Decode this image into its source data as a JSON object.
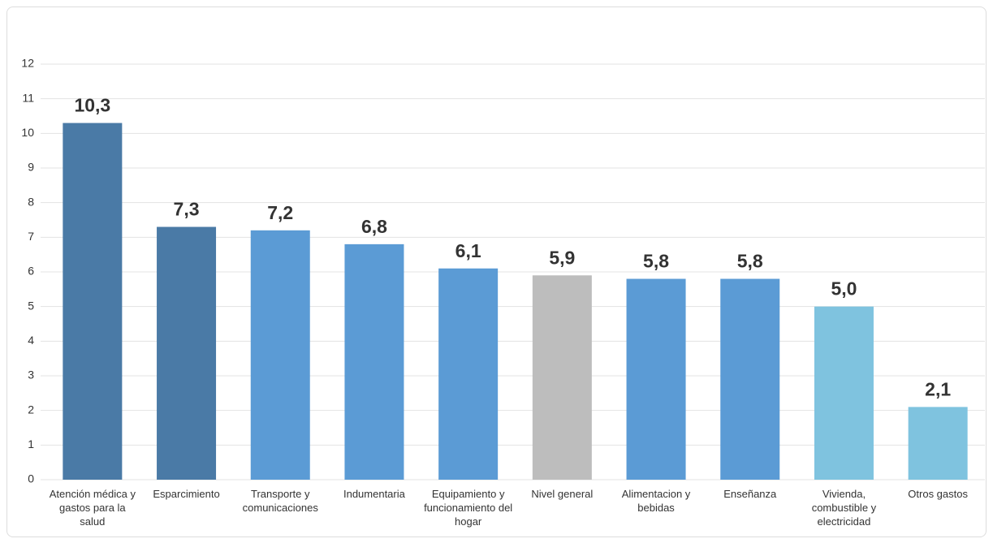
{
  "chart_data": {
    "type": "bar",
    "categories": [
      "Atención médica y gastos para la salud",
      "Esparcimiento",
      "Transporte y comunicaciones",
      "Indumentaria",
      "Equipamiento y funcionamiento del hogar",
      "Nivel general",
      "Alimentacion y bebidas",
      "Enseñanza",
      "Vivienda, combustible y electricidad",
      "Otros gastos"
    ],
    "values": [
      10.3,
      7.3,
      7.2,
      6.8,
      6.1,
      5.9,
      5.8,
      5.8,
      5.0,
      2.1
    ],
    "value_labels": [
      "10,3",
      "7,3",
      "7,2",
      "6,8",
      "6,1",
      "5,9",
      "5,8",
      "5,8",
      "5,0",
      "2,1"
    ],
    "colors": [
      "#4a7aa6",
      "#4a7aa6",
      "#5b9bd5",
      "#5b9bd5",
      "#5b9bd5",
      "#bdbdbd",
      "#5b9bd5",
      "#5b9bd5",
      "#7fc3df",
      "#7fc3df"
    ],
    "ylim": [
      0,
      12
    ],
    "yticks": [
      0,
      1,
      2,
      3,
      4,
      5,
      6,
      7,
      8,
      9,
      10,
      11,
      12
    ],
    "grid": true
  }
}
